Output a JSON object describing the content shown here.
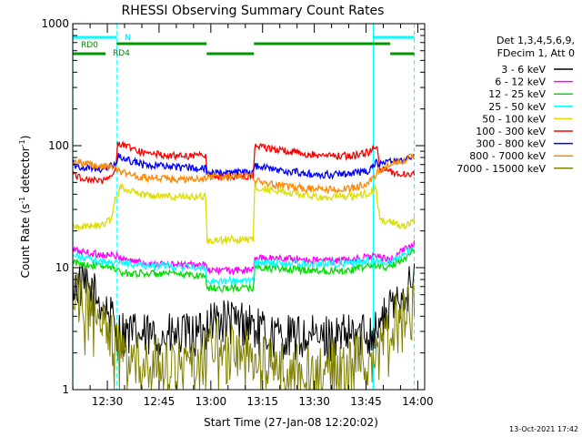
{
  "chart_data": {
    "type": "line",
    "title": "RHESSI Observing Summary Count Rates",
    "xlabel": "Start Time (27-Jan-08 12:20:02)",
    "ylabel_parts": [
      "Count Rate (s",
      "-1",
      " detector",
      "-1",
      ")"
    ],
    "yscale": "log",
    "ylim": [
      1,
      1000
    ],
    "y_ticks": [
      {
        "value": 1,
        "label": "1"
      },
      {
        "value": 10,
        "label": "10"
      },
      {
        "value": 100,
        "label": "100"
      },
      {
        "value": 1000,
        "label": "1000"
      }
    ],
    "xlim_minutes": [
      -0.03,
      102.0
    ],
    "x_ticks": [
      {
        "minute": 10,
        "label": "12:30"
      },
      {
        "minute": 25,
        "label": "12:45"
      },
      {
        "minute": 40,
        "label": "13:00"
      },
      {
        "minute": 55,
        "label": "13:15"
      },
      {
        "minute": 70,
        "label": "13:30"
      },
      {
        "minute": 85,
        "label": "13:45"
      },
      {
        "minute": 100,
        "label": "14:00"
      }
    ],
    "detector_info": [
      "Det 1,3,4,5,6,9,",
      "FDecim 1, Att 0"
    ],
    "footer_date": "13-Oct-2021 17:42",
    "markers": {
      "cyan_solid_lines_minutes": [
        0,
        87.1
      ],
      "cyan_dashed_lines_minutes": [
        12.7,
        99.0
      ],
      "labels": [
        {
          "text": "N",
          "color": "#00d8ff"
        },
        {
          "text": "RD0",
          "color": "#008800"
        },
        {
          "text": "RD4",
          "color": "#008800"
        }
      ],
      "bars": [
        {
          "color": "#00ffff",
          "row": 1,
          "spans": [
            [
              0,
              12.7
            ],
            [
              87.1,
              99.0
            ]
          ]
        },
        {
          "color": "#009900",
          "row": 2,
          "spans": [
            [
              12.7,
              38.8
            ],
            [
              52.5,
              92.0
            ]
          ]
        },
        {
          "color": "#009900",
          "row": 3,
          "spans": [
            [
              0,
              9.5
            ],
            [
              38.8,
              52.5
            ],
            [
              92.0,
              99.0
            ]
          ]
        }
      ]
    },
    "series": [
      {
        "name": "3 - 6 keV",
        "color": "#000000",
        "points": [
          [
            0,
            7.5
          ],
          [
            5,
            6.5
          ],
          [
            10,
            4.5
          ],
          [
            13,
            3.0
          ],
          [
            20,
            2.7
          ],
          [
            30,
            2.7
          ],
          [
            38,
            2.8
          ],
          [
            39,
            3.8
          ],
          [
            45,
            3.6
          ],
          [
            52,
            3.5
          ],
          [
            53,
            3.0
          ],
          [
            60,
            2.7
          ],
          [
            70,
            2.6
          ],
          [
            80,
            2.7
          ],
          [
            87,
            3.0
          ],
          [
            91,
            4.0
          ],
          [
            95,
            6.0
          ],
          [
            99,
            7.5
          ]
        ]
      },
      {
        "name": "6 - 12 keV",
        "color": "#ff00ff",
        "points": [
          [
            0,
            14
          ],
          [
            6,
            13
          ],
          [
            12,
            12.5
          ],
          [
            14,
            12
          ],
          [
            20,
            11
          ],
          [
            30,
            10.5
          ],
          [
            38.5,
            10.5
          ],
          [
            38.9,
            9.5
          ],
          [
            45,
            9.5
          ],
          [
            52.4,
            9.5
          ],
          [
            52.6,
            12
          ],
          [
            60,
            12
          ],
          [
            70,
            11.5
          ],
          [
            80,
            11.5
          ],
          [
            87,
            12.5
          ],
          [
            92,
            11.5
          ],
          [
            96,
            14
          ],
          [
            99,
            16
          ]
        ]
      },
      {
        "name": "12 - 25 keV",
        "color": "#00dd00",
        "points": [
          [
            0,
            11
          ],
          [
            6,
            10.5
          ],
          [
            12,
            10
          ],
          [
            14,
            9
          ],
          [
            20,
            9
          ],
          [
            30,
            8.8
          ],
          [
            38.5,
            8.6
          ],
          [
            38.9,
            6.8
          ],
          [
            45,
            6.8
          ],
          [
            52.4,
            6.8
          ],
          [
            52.6,
            10
          ],
          [
            60,
            9.8
          ],
          [
            70,
            9.5
          ],
          [
            80,
            9.5
          ],
          [
            87,
            10.5
          ],
          [
            92,
            10
          ],
          [
            96,
            12
          ],
          [
            99,
            14
          ]
        ]
      },
      {
        "name": "25 - 50 keV",
        "color": "#00ffff",
        "points": [
          [
            0,
            12.5
          ],
          [
            6,
            11.5
          ],
          [
            12,
            11
          ],
          [
            14,
            11
          ],
          [
            20,
            10.5
          ],
          [
            30,
            10.2
          ],
          [
            38.5,
            10.0
          ],
          [
            38.9,
            7.8
          ],
          [
            45,
            7.8
          ],
          [
            52.4,
            7.8
          ],
          [
            52.6,
            11
          ],
          [
            60,
            11
          ],
          [
            70,
            10.8
          ],
          [
            80,
            10.8
          ],
          [
            87,
            11.5
          ],
          [
            92,
            11
          ],
          [
            96,
            13
          ],
          [
            99,
            15
          ]
        ]
      },
      {
        "name": "50 - 100 keV",
        "color": "#dddd00",
        "points": [
          [
            0,
            22
          ],
          [
            8,
            22
          ],
          [
            11,
            25
          ],
          [
            12.4,
            37
          ],
          [
            14,
            46
          ],
          [
            20,
            40
          ],
          [
            30,
            38
          ],
          [
            38.5,
            38
          ],
          [
            38.9,
            16.5
          ],
          [
            45,
            17
          ],
          [
            52.4,
            17
          ],
          [
            52.6,
            46
          ],
          [
            60,
            42
          ],
          [
            70,
            38
          ],
          [
            80,
            38
          ],
          [
            86,
            41
          ],
          [
            87.8,
            46
          ],
          [
            89,
            25
          ],
          [
            96,
            22
          ],
          [
            99,
            25
          ]
        ]
      },
      {
        "name": "100 - 300 keV",
        "color": "#ff0000",
        "points": [
          [
            0,
            58
          ],
          [
            5,
            52
          ],
          [
            9,
            52
          ],
          [
            12.4,
            62
          ],
          [
            13,
            105
          ],
          [
            20,
            88
          ],
          [
            30,
            82
          ],
          [
            38.5,
            84
          ],
          [
            38.9,
            56
          ],
          [
            45,
            56
          ],
          [
            52.4,
            56
          ],
          [
            52.6,
            100
          ],
          [
            60,
            92
          ],
          [
            70,
            84
          ],
          [
            80,
            82
          ],
          [
            86,
            88
          ],
          [
            88,
            102
          ],
          [
            89,
            65
          ],
          [
            95,
            58
          ],
          [
            99,
            60
          ]
        ]
      },
      {
        "name": "300 - 800 keV",
        "color": "#0000ff",
        "points": [
          [
            0,
            70
          ],
          [
            5,
            65
          ],
          [
            9,
            64
          ],
          [
            12.4,
            70
          ],
          [
            13,
            82
          ],
          [
            20,
            70
          ],
          [
            30,
            66
          ],
          [
            38.5,
            66
          ],
          [
            38.9,
            60
          ],
          [
            45,
            60
          ],
          [
            52.4,
            60
          ],
          [
            52.6,
            68
          ],
          [
            60,
            63
          ],
          [
            70,
            58
          ],
          [
            80,
            58
          ],
          [
            86,
            63
          ],
          [
            88,
            72
          ],
          [
            89,
            71
          ],
          [
            95,
            76
          ],
          [
            99,
            82
          ]
        ]
      },
      {
        "name": "800 - 7000 keV",
        "color": "#ff8800",
        "points": [
          [
            0,
            75
          ],
          [
            5,
            70
          ],
          [
            9,
            68
          ],
          [
            12.4,
            65
          ],
          [
            13,
            62
          ],
          [
            20,
            55
          ],
          [
            30,
            53
          ],
          [
            38.5,
            53
          ],
          [
            38.9,
            56
          ],
          [
            45,
            56
          ],
          [
            52.4,
            56
          ],
          [
            52.6,
            52
          ],
          [
            60,
            47
          ],
          [
            70,
            44
          ],
          [
            80,
            44
          ],
          [
            86,
            50
          ],
          [
            88,
            58
          ],
          [
            89,
            63
          ],
          [
            95,
            75
          ],
          [
            99,
            82
          ]
        ]
      },
      {
        "name": "7000 - 15000 keV",
        "color": "#808000",
        "points": [
          [
            0,
            6.5
          ],
          [
            5,
            5.0
          ],
          [
            10,
            3.0
          ],
          [
            13,
            2.2
          ],
          [
            20,
            1.8
          ],
          [
            30,
            1.7
          ],
          [
            38,
            1.9
          ],
          [
            39,
            2.5
          ],
          [
            45,
            2.4
          ],
          [
            52,
            2.1
          ],
          [
            53,
            1.9
          ],
          [
            60,
            1.6
          ],
          [
            70,
            1.5
          ],
          [
            80,
            1.8
          ],
          [
            87,
            2.3
          ],
          [
            91,
            3.0
          ],
          [
            95,
            4.5
          ],
          [
            99,
            5.5
          ]
        ]
      }
    ]
  }
}
